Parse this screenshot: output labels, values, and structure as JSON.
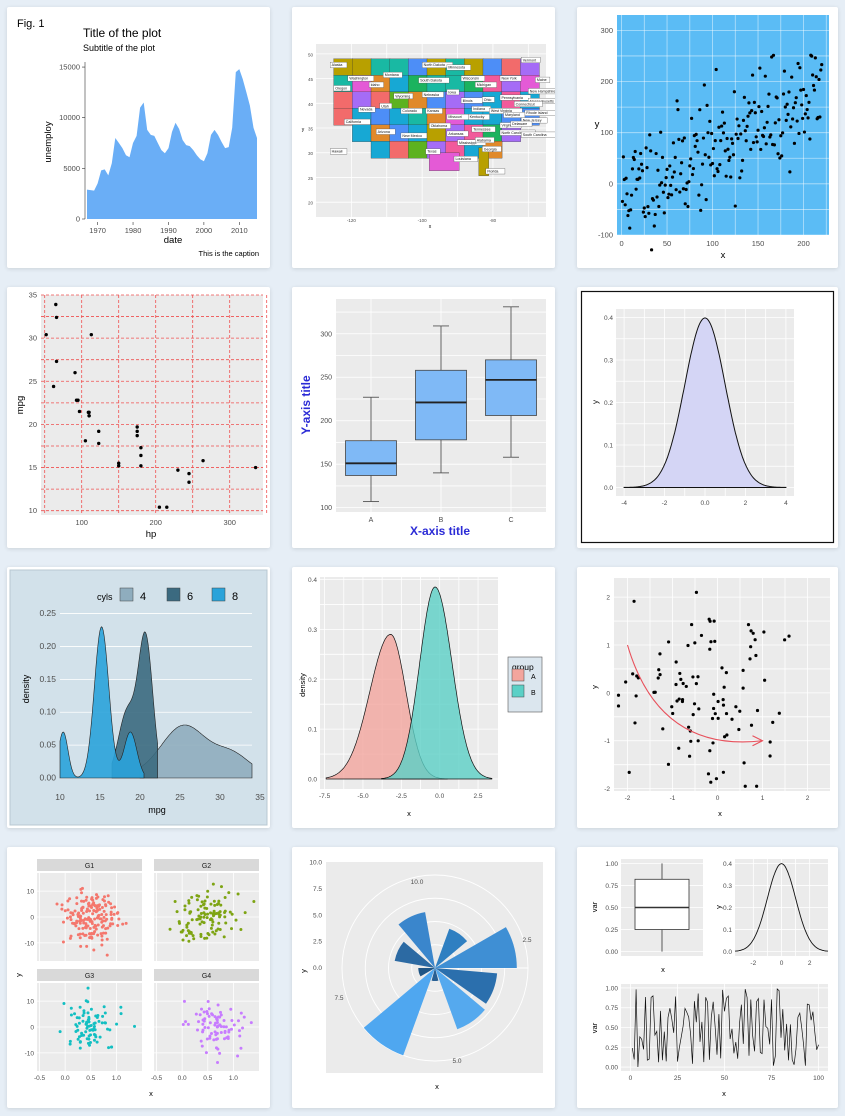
{
  "panels": {
    "p1": {
      "fig_label": "Fig. 1",
      "title": "Title of the plot",
      "subtitle": "Subtitle of the plot",
      "caption": "This is the caption",
      "xlabel": "date",
      "ylabel": "unemploy"
    },
    "p2": {
      "xlabel": "x",
      "ylabel": "y"
    },
    "p3": {
      "xlabel": "x",
      "ylabel": "y"
    },
    "p4": {
      "xlabel": "hp",
      "ylabel": "mpg"
    },
    "p5": {
      "xlabel": "X-axis title",
      "ylabel": "Y-axis title"
    },
    "p6": {
      "xlabel": "",
      "ylabel": "y"
    },
    "p7": {
      "xlabel": "mpg",
      "ylabel": "density",
      "legend_title": "cyls"
    },
    "p8": {
      "xlabel": "x",
      "ylabel": "density",
      "legend_title": "group"
    },
    "p9": {
      "xlabel": "x",
      "ylabel": "y"
    },
    "p10": {
      "xlabel": "x",
      "ylabel": "y"
    },
    "p11": {
      "xlabel": "x",
      "ylabel": "y"
    },
    "p12": {
      "top_left_ylabel": "var",
      "top_left_xlabel": "x",
      "top_right_ylabel": "y",
      "bottom_ylabel": "var",
      "bottom_xlabel": "x"
    }
  },
  "colors": {
    "area_blue": "#6aaef6",
    "panel_grey": "#ebebeb",
    "sky": "#5bbcf5",
    "red_dash": "#f05050",
    "box_blue": "#7fb9f6",
    "lavender": "#d4d5f5",
    "p7_bg": "#d2e1ea",
    "salmon": "#f3a59d",
    "teal": "#5bd0c6",
    "arrow_red": "#e8505b"
  },
  "chart_data": [
    {
      "id": "p1",
      "type": "area",
      "title": "Title of the plot",
      "subtitle": "Subtitle of the plot",
      "caption": "This is the caption",
      "xlabel": "date",
      "ylabel": "unemploy",
      "x": [
        1967,
        1969,
        1970,
        1971,
        1972,
        1973,
        1974,
        1975,
        1976,
        1977,
        1978,
        1979,
        1980,
        1981,
        1982,
        1983,
        1984,
        1985,
        1986,
        1987,
        1988,
        1989,
        1990,
        1991,
        1992,
        1993,
        1994,
        1995,
        1996,
        1997,
        1998,
        1999,
        2000,
        2001,
        2002,
        2003,
        2004,
        2005,
        2006,
        2007,
        2008,
        2009,
        2010,
        2011,
        2012,
        2013,
        2014,
        2015
      ],
      "y": [
        2900,
        2800,
        3500,
        4800,
        4900,
        4300,
        5500,
        8000,
        7500,
        7000,
        6300,
        6100,
        7500,
        8200,
        11000,
        11500,
        8800,
        8300,
        8200,
        7500,
        6800,
        6500,
        7000,
        8600,
        9500,
        8900,
        7800,
        7300,
        7200,
        6800,
        6300,
        5900,
        5700,
        6500,
        8300,
        8800,
        8300,
        7600,
        7000,
        7100,
        9000,
        14500,
        14800,
        13800,
        12500,
        11200,
        9000,
        8000
      ],
      "xticks": [
        1970,
        1980,
        1990,
        2000,
        2010
      ],
      "yticks": [
        0,
        5000,
        10000,
        15000
      ],
      "xlim": [
        1967,
        2015
      ],
      "ylim": [
        0,
        15500
      ]
    },
    {
      "id": "p2",
      "type": "map",
      "xlabel": "x",
      "ylabel": "y",
      "xticks": [
        -120,
        -100,
        -80
      ],
      "yticks": [
        20,
        25,
        30,
        35,
        40,
        45,
        50
      ],
      "labels": [
        "Alaska",
        "Washington",
        "Montana",
        "North Dakota",
        "Minnesota",
        "Oregon",
        "Idaho",
        "South Dakota",
        "Wisconsin",
        "New York",
        "Vermont",
        "Maine",
        "Nebraska",
        "Iowa",
        "Michigan",
        "New Hampshire",
        "Wyoming",
        "Illinois",
        "Ohio",
        "Pennsylvania",
        "Massachusetts",
        "Nevada",
        "Utah",
        "Colorado",
        "Kansas",
        "Indiana",
        "Connecticut",
        "Rhode Island",
        "California",
        "Missouri",
        "Kentucky",
        "West Virginia",
        "Maryland",
        "New Jersey",
        "Arizona",
        "Oklahoma",
        "Tennessee",
        "Virginia",
        "Delaware",
        "New Mexico",
        "Arkansas",
        "North Carolina",
        "South Carolina",
        "Mississippi",
        "Alabama",
        "Georgia",
        "Texas",
        "Louisiana",
        "Hawaii",
        "Florida"
      ]
    },
    {
      "id": "p3",
      "type": "scatter",
      "xlabel": "x",
      "ylabel": "y",
      "xticks": [
        0,
        50,
        100,
        150,
        200
      ],
      "yticks": [
        -100,
        0,
        100,
        200,
        300
      ],
      "xlim": [
        -5,
        228
      ],
      "ylim": [
        -100,
        330
      ]
    },
    {
      "id": "p4",
      "type": "scatter",
      "xlabel": "hp",
      "ylabel": "mpg",
      "xticks": [
        100,
        200,
        300
      ],
      "yticks": [
        10,
        15,
        20,
        25,
        30,
        35
      ],
      "xlim": [
        45,
        345
      ],
      "ylim": [
        9.5,
        35
      ],
      "x": [
        110,
        110,
        93,
        110,
        175,
        105,
        245,
        62,
        95,
        123,
        123,
        180,
        180,
        180,
        205,
        215,
        230,
        66,
        52,
        65,
        97,
        150,
        150,
        245,
        175,
        66,
        91,
        113,
        264,
        175,
        335,
        109
      ],
      "y": [
        21,
        21,
        22.8,
        21.4,
        18.7,
        18.1,
        14.3,
        24.4,
        22.8,
        19.2,
        17.8,
        16.4,
        17.3,
        15.2,
        10.4,
        10.4,
        14.7,
        32.4,
        30.4,
        33.9,
        21.5,
        15.5,
        15.2,
        13.3,
        19.2,
        27.3,
        26,
        30.4,
        15.8,
        19.7,
        15,
        21.4
      ]
    },
    {
      "id": "p5",
      "type": "box",
      "xlabel": "X-axis title",
      "ylabel": "Y-axis title",
      "categories": [
        "A",
        "B",
        "C"
      ],
      "yticks": [
        100,
        150,
        200,
        250,
        300
      ],
      "ylim": [
        95,
        340
      ],
      "boxes": [
        {
          "min": 107,
          "q1": 137,
          "median": 151,
          "q3": 177,
          "max": 227
        },
        {
          "min": 140,
          "q1": 178,
          "median": 221,
          "q3": 258,
          "max": 309
        },
        {
          "min": 158,
          "q1": 206,
          "median": 247,
          "q3": 270,
          "max": 331
        }
      ]
    },
    {
      "id": "p6",
      "type": "area",
      "ylabel": "y",
      "xticks": [
        -4,
        -2,
        0,
        2,
        4
      ],
      "yticks": [
        0.0,
        0.1,
        0.2,
        0.3,
        0.4
      ],
      "xlim": [
        -4.4,
        4.4
      ],
      "ylim": [
        -0.02,
        0.42
      ],
      "function": "normal density, mean 0, sd 1"
    },
    {
      "id": "p7",
      "type": "area",
      "xlabel": "mpg",
      "ylabel": "density",
      "legend_title": "cyls",
      "legend": [
        "4",
        "6",
        "8"
      ],
      "xticks": [
        10,
        15,
        20,
        25,
        30,
        35
      ],
      "yticks": [
        0.0,
        0.05,
        0.1,
        0.15,
        0.2,
        0.25
      ],
      "xlim": [
        10,
        35
      ],
      "ylim": [
        0,
        0.26
      ]
    },
    {
      "id": "p8",
      "type": "area",
      "xlabel": "x",
      "ylabel": "density",
      "legend_title": "group",
      "legend": [
        "A",
        "B"
      ],
      "xticks": [
        -7.5,
        -5.0,
        -2.5,
        0.0,
        2.5
      ],
      "yticks": [
        0.0,
        0.1,
        0.2,
        0.3,
        0.4
      ],
      "xlim": [
        -7.8,
        3.8
      ],
      "ylim": [
        0,
        0.4
      ]
    },
    {
      "id": "p9",
      "type": "scatter",
      "xlabel": "x",
      "ylabel": "y",
      "xticks": [
        -2,
        -1,
        0,
        1,
        2
      ],
      "yticks": [
        -2,
        -1,
        0,
        1,
        2
      ],
      "xlim": [
        -2.3,
        2.5
      ],
      "ylim": [
        -2.05,
        2.4
      ]
    },
    {
      "id": "p10",
      "type": "scatter",
      "xlabel": "x",
      "ylabel": "y",
      "facets": [
        "G1",
        "G2",
        "G3",
        "G4"
      ],
      "xticks": [
        -0.5,
        0.0,
        0.5,
        1.0
      ],
      "yticks": [
        -10,
        0,
        10
      ]
    },
    {
      "id": "p11",
      "type": "bar",
      "coord": "polar",
      "xlabel": "x",
      "ylabel": "y",
      "yticks": [
        0.0,
        2.5,
        5.0,
        7.5,
        10.0
      ],
      "angle_labels": [
        "10.0",
        "2.5",
        "5.0",
        "7.5"
      ]
    },
    {
      "id": "p12",
      "type": "box",
      "xlabel": "x",
      "ylabel": "var",
      "top_left": {
        "min": 0.0,
        "q1": 0.25,
        "median": 0.5,
        "q3": 0.82,
        "max": 1.0,
        "yticks": [
          0.0,
          0.25,
          0.5,
          0.75,
          1.0
        ]
      },
      "top_right": {
        "xticks": [
          -2,
          0,
          2
        ],
        "yticks": [
          0.0,
          0.1,
          0.2,
          0.3,
          0.4
        ]
      },
      "bottom": {
        "type": "line",
        "xticks": [
          0,
          25,
          50,
          75,
          100
        ],
        "yticks": [
          0.0,
          0.25,
          0.5,
          0.75,
          1.0
        ]
      }
    }
  ]
}
